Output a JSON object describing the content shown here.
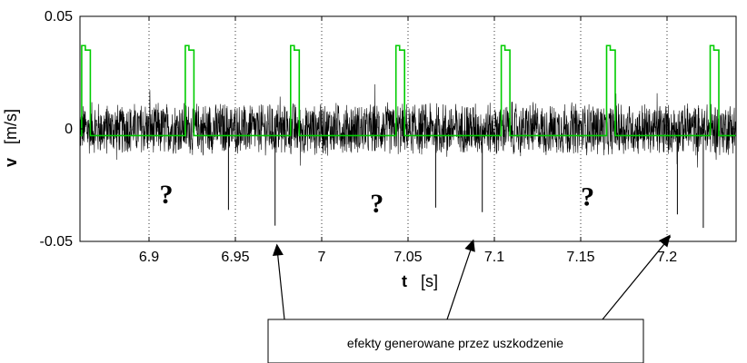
{
  "chart_data": {
    "type": "line",
    "title": "",
    "xlabel": {
      "symbol": "t",
      "unit": "[s]"
    },
    "ylabel": {
      "symbol": "v",
      "unit": "[m/s]"
    },
    "xlim": [
      6.86,
      7.24
    ],
    "ylim": [
      -0.05,
      0.05
    ],
    "x_ticks": [
      6.9,
      6.95,
      7.0,
      7.05,
      7.1,
      7.15,
      7.2
    ],
    "x_tick_labels": [
      "6.9",
      "6.95",
      "7",
      "7.05",
      "7.1",
      "7.15",
      "7.2"
    ],
    "y_ticks": [
      -0.05,
      0,
      0.05
    ],
    "y_tick_labels": [
      "-0.05",
      "0",
      "0.05"
    ],
    "grid": "vertical dotted",
    "series": [
      {
        "color": "#000000",
        "description_kind": "noise",
        "noise_amplitude": 0.012,
        "spikes": [
          {
            "x": 6.946,
            "y": -0.036
          },
          {
            "x": 6.973,
            "y": -0.043
          },
          {
            "x": 7.066,
            "y": -0.035
          },
          {
            "x": 7.093,
            "y": -0.037
          },
          {
            "x": 7.206,
            "y": -0.038
          },
          {
            "x": 7.221,
            "y": -0.044
          }
        ]
      },
      {
        "color": "#00cc00",
        "baseline": -0.003,
        "pulse_height": 0.037,
        "pulse_width": 0.005,
        "pulse_starts": [
          6.861,
          6.921,
          6.982,
          7.043,
          7.104,
          7.165,
          7.225
        ]
      }
    ],
    "annotations": {
      "question_marks": [
        {
          "text": "?",
          "x": 6.91,
          "y": -0.033
        },
        {
          "text": "?",
          "x": 7.032,
          "y": -0.037
        },
        {
          "text": "?",
          "x": 7.154,
          "y": -0.034
        }
      ],
      "callout": {
        "text": "efekty generowane przez uszkodzenie",
        "targets": [
          {
            "x": 6.974,
            "y": -0.051
          },
          {
            "x": 7.088,
            "y": -0.049
          },
          {
            "x": 7.202,
            "y": -0.047
          }
        ]
      }
    }
  }
}
